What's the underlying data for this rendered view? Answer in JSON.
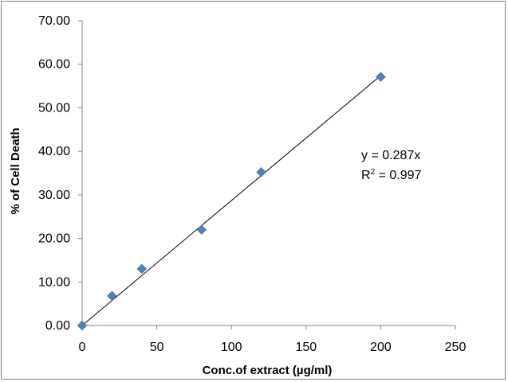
{
  "chart_data": {
    "type": "scatter",
    "title": "",
    "xlabel": "Conc.of extract (µg/ml)",
    "ylabel": "% of Cell Death",
    "xlim": [
      0,
      250
    ],
    "ylim": [
      0,
      70
    ],
    "x_ticks": [
      "0",
      "50",
      "100",
      "150",
      "200",
      "250"
    ],
    "y_ticks": [
      "0.00",
      "10.00",
      "20.00",
      "30.00",
      "40.00",
      "50.00",
      "60.00",
      "70.00"
    ],
    "grid": false,
    "legend": "none",
    "series": [
      {
        "x": [
          0,
          20,
          40,
          80,
          120,
          200
        ],
        "y": [
          0.0,
          6.8,
          13.0,
          22.0,
          35.2,
          57.1
        ],
        "marker": "diamond",
        "color": "#4F81BD"
      }
    ],
    "trendline": {
      "type": "linear",
      "slope": 0.287,
      "intercept": 0,
      "color": "#000000"
    },
    "annotations": [
      "y = 0.287x",
      "R",
      "2",
      " = 0.997"
    ]
  }
}
